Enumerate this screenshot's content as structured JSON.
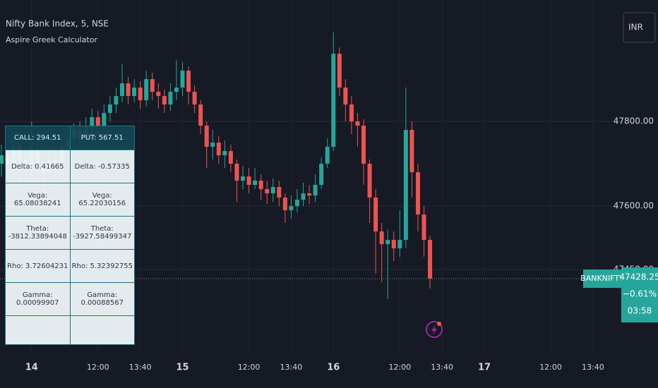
{
  "chart_data": {
    "type": "candlestick",
    "title": "Nifty Bank Index, 5, NSE",
    "subtitle": "Aspire Greek Calculator",
    "currency": "INR",
    "symbol": "BANKNIFTY",
    "last": 47428.25,
    "change": "−0.61%",
    "countdown": "03:58",
    "up_color": "#26a69a",
    "down_color": "#ef5350",
    "grid": true,
    "ylim": [
      47245,
      48087
    ],
    "yticks": [
      {
        "value": 47450,
        "label": "47450.00"
      },
      {
        "value": 47600,
        "label": "47600.00"
      },
      {
        "value": 47800,
        "label": "47800.00"
      }
    ],
    "categories": [
      null,
      null,
      null,
      null,
      null,
      "14",
      null,
      null,
      null,
      null,
      null,
      null,
      null,
      null,
      null,
      null,
      "12:00",
      null,
      null,
      null,
      null,
      null,
      null,
      "13:40",
      null,
      null,
      null,
      null,
      null,
      null,
      "15",
      null,
      null,
      null,
      null,
      null,
      null,
      null,
      null,
      null,
      null,
      "12:00",
      null,
      null,
      null,
      null,
      null,
      null,
      "13:40",
      null,
      null,
      null,
      null,
      null,
      null,
      "16",
      null,
      null,
      null,
      null,
      null,
      null,
      null,
      null,
      null,
      null,
      "12:00",
      null,
      null,
      null,
      null,
      null,
      null,
      "13:40",
      null,
      null,
      null,
      null,
      null,
      null,
      "17",
      null,
      null,
      null,
      null,
      null,
      null,
      null,
      null,
      null,
      null,
      "12:00",
      null,
      null,
      null,
      null,
      null,
      null,
      "13:40"
    ],
    "open": [
      47700,
      47720,
      47700,
      47740,
      47710,
      47690,
      47730,
      47700,
      47680,
      47710,
      47700,
      47740,
      47760,
      47780,
      47760,
      47790,
      47810,
      47790,
      47820,
      47840,
      47860,
      47890,
      47860,
      47880,
      47850,
      47900,
      47870,
      47860,
      47840,
      47870,
      47880,
      47920,
      47870,
      47840,
      47790,
      47740,
      47750,
      47720,
      47730,
      47700,
      47660,
      47670,
      47650,
      47660,
      47640,
      47630,
      47645,
      47620,
      47590,
      47600,
      47615,
      47630,
      47625,
      47650,
      47700,
      47740,
      47960,
      47880,
      47840,
      47800,
      47790,
      47700,
      47620,
      47540,
      47510,
      47520,
      47500,
      47520,
      47780,
      47680,
      47580,
      47520,
      null,
      null,
      null,
      null,
      null,
      null,
      null,
      null,
      null,
      null,
      null,
      null,
      null,
      null,
      null,
      null,
      null,
      null,
      null,
      null,
      null,
      null,
      null,
      null,
      null,
      null,
      null
    ],
    "high": [
      47745,
      47735,
      47760,
      47750,
      47725,
      47800,
      47745,
      47715,
      47730,
      47725,
      47760,
      47780,
      47795,
      47800,
      47810,
      47830,
      47825,
      47840,
      47860,
      47880,
      47935,
      47905,
      47900,
      47895,
      47920,
      47915,
      47890,
      47875,
      47890,
      47945,
      47940,
      47930,
      47885,
      47850,
      47800,
      47780,
      47765,
      47755,
      47745,
      47710,
      47695,
      47690,
      47690,
      47675,
      47660,
      47665,
      47660,
      47630,
      47625,
      47640,
      47655,
      47650,
      47675,
      47715,
      47760,
      48010,
      47975,
      47900,
      47860,
      47820,
      47805,
      47710,
      47640,
      47560,
      47545,
      47540,
      47590,
      47880,
      47800,
      47700,
      47600,
      47530,
      null,
      null,
      null,
      null,
      null,
      null,
      null,
      null,
      null,
      null,
      null,
      null,
      null,
      null,
      null,
      null,
      null,
      null,
      null,
      null,
      null,
      null,
      null,
      null,
      null,
      null,
      null
    ],
    "low": [
      47670,
      47680,
      47690,
      47640,
      47660,
      47660,
      47640,
      47630,
      47650,
      47670,
      47690,
      47720,
      47740,
      47745,
      47750,
      47770,
      47770,
      47775,
      47800,
      47820,
      47845,
      47840,
      47845,
      47830,
      47835,
      47850,
      47830,
      47820,
      47825,
      47850,
      47860,
      47840,
      47820,
      47770,
      47690,
      47710,
      47700,
      47690,
      47680,
      47610,
      47640,
      47630,
      47640,
      47615,
      47605,
      47610,
      47600,
      47560,
      47570,
      47585,
      47600,
      47605,
      47610,
      47640,
      47690,
      47730,
      47860,
      47800,
      47770,
      47740,
      47650,
      47560,
      47440,
      47420,
      47380,
      47470,
      47480,
      47500,
      47620,
      47540,
      47480,
      47405,
      null,
      null,
      null,
      null,
      null,
      null,
      null,
      null,
      null,
      null,
      null,
      null,
      null,
      null,
      null,
      null,
      null,
      null,
      null,
      null,
      null,
      null,
      null,
      null,
      null,
      null,
      null
    ],
    "close": [
      47720,
      47700,
      47740,
      47710,
      47690,
      47730,
      47700,
      47680,
      47710,
      47700,
      47740,
      47760,
      47780,
      47760,
      47790,
      47810,
      47790,
      47820,
      47840,
      47860,
      47890,
      47860,
      47880,
      47850,
      47900,
      47870,
      47860,
      47840,
      47870,
      47880,
      47920,
      47870,
      47840,
      47790,
      47740,
      47750,
      47720,
      47730,
      47700,
      47660,
      47670,
      47650,
      47660,
      47640,
      47630,
      47645,
      47620,
      47590,
      47600,
      47615,
      47630,
      47625,
      47650,
      47700,
      47740,
      47960,
      47880,
      47840,
      47800,
      47790,
      47700,
      47620,
      47540,
      47510,
      47520,
      47500,
      47520,
      47780,
      47680,
      47580,
      47520,
      47428.25,
      null,
      null,
      null,
      null,
      null,
      null,
      null,
      null,
      null,
      null,
      null,
      null,
      null,
      null,
      null,
      null,
      null,
      null,
      null,
      null,
      null,
      null,
      null,
      null,
      null,
      null,
      null
    ]
  },
  "table": {
    "header": [
      "CALL: 294.51",
      "PUT: 567.51"
    ],
    "rows": [
      [
        "Delta: 0.41665",
        "Delta: -0.57335"
      ],
      [
        "Vega: 65.08038241",
        "Vega: 65.22030156"
      ],
      [
        "Theta: -3812.33894048",
        "Theta: -3927.58499347"
      ],
      [
        "Rho: 3.72604231",
        "Rho: 5.32392755"
      ],
      [
        "Gamma: 0.00099907",
        "Gamma: 0.00088567"
      ]
    ]
  }
}
